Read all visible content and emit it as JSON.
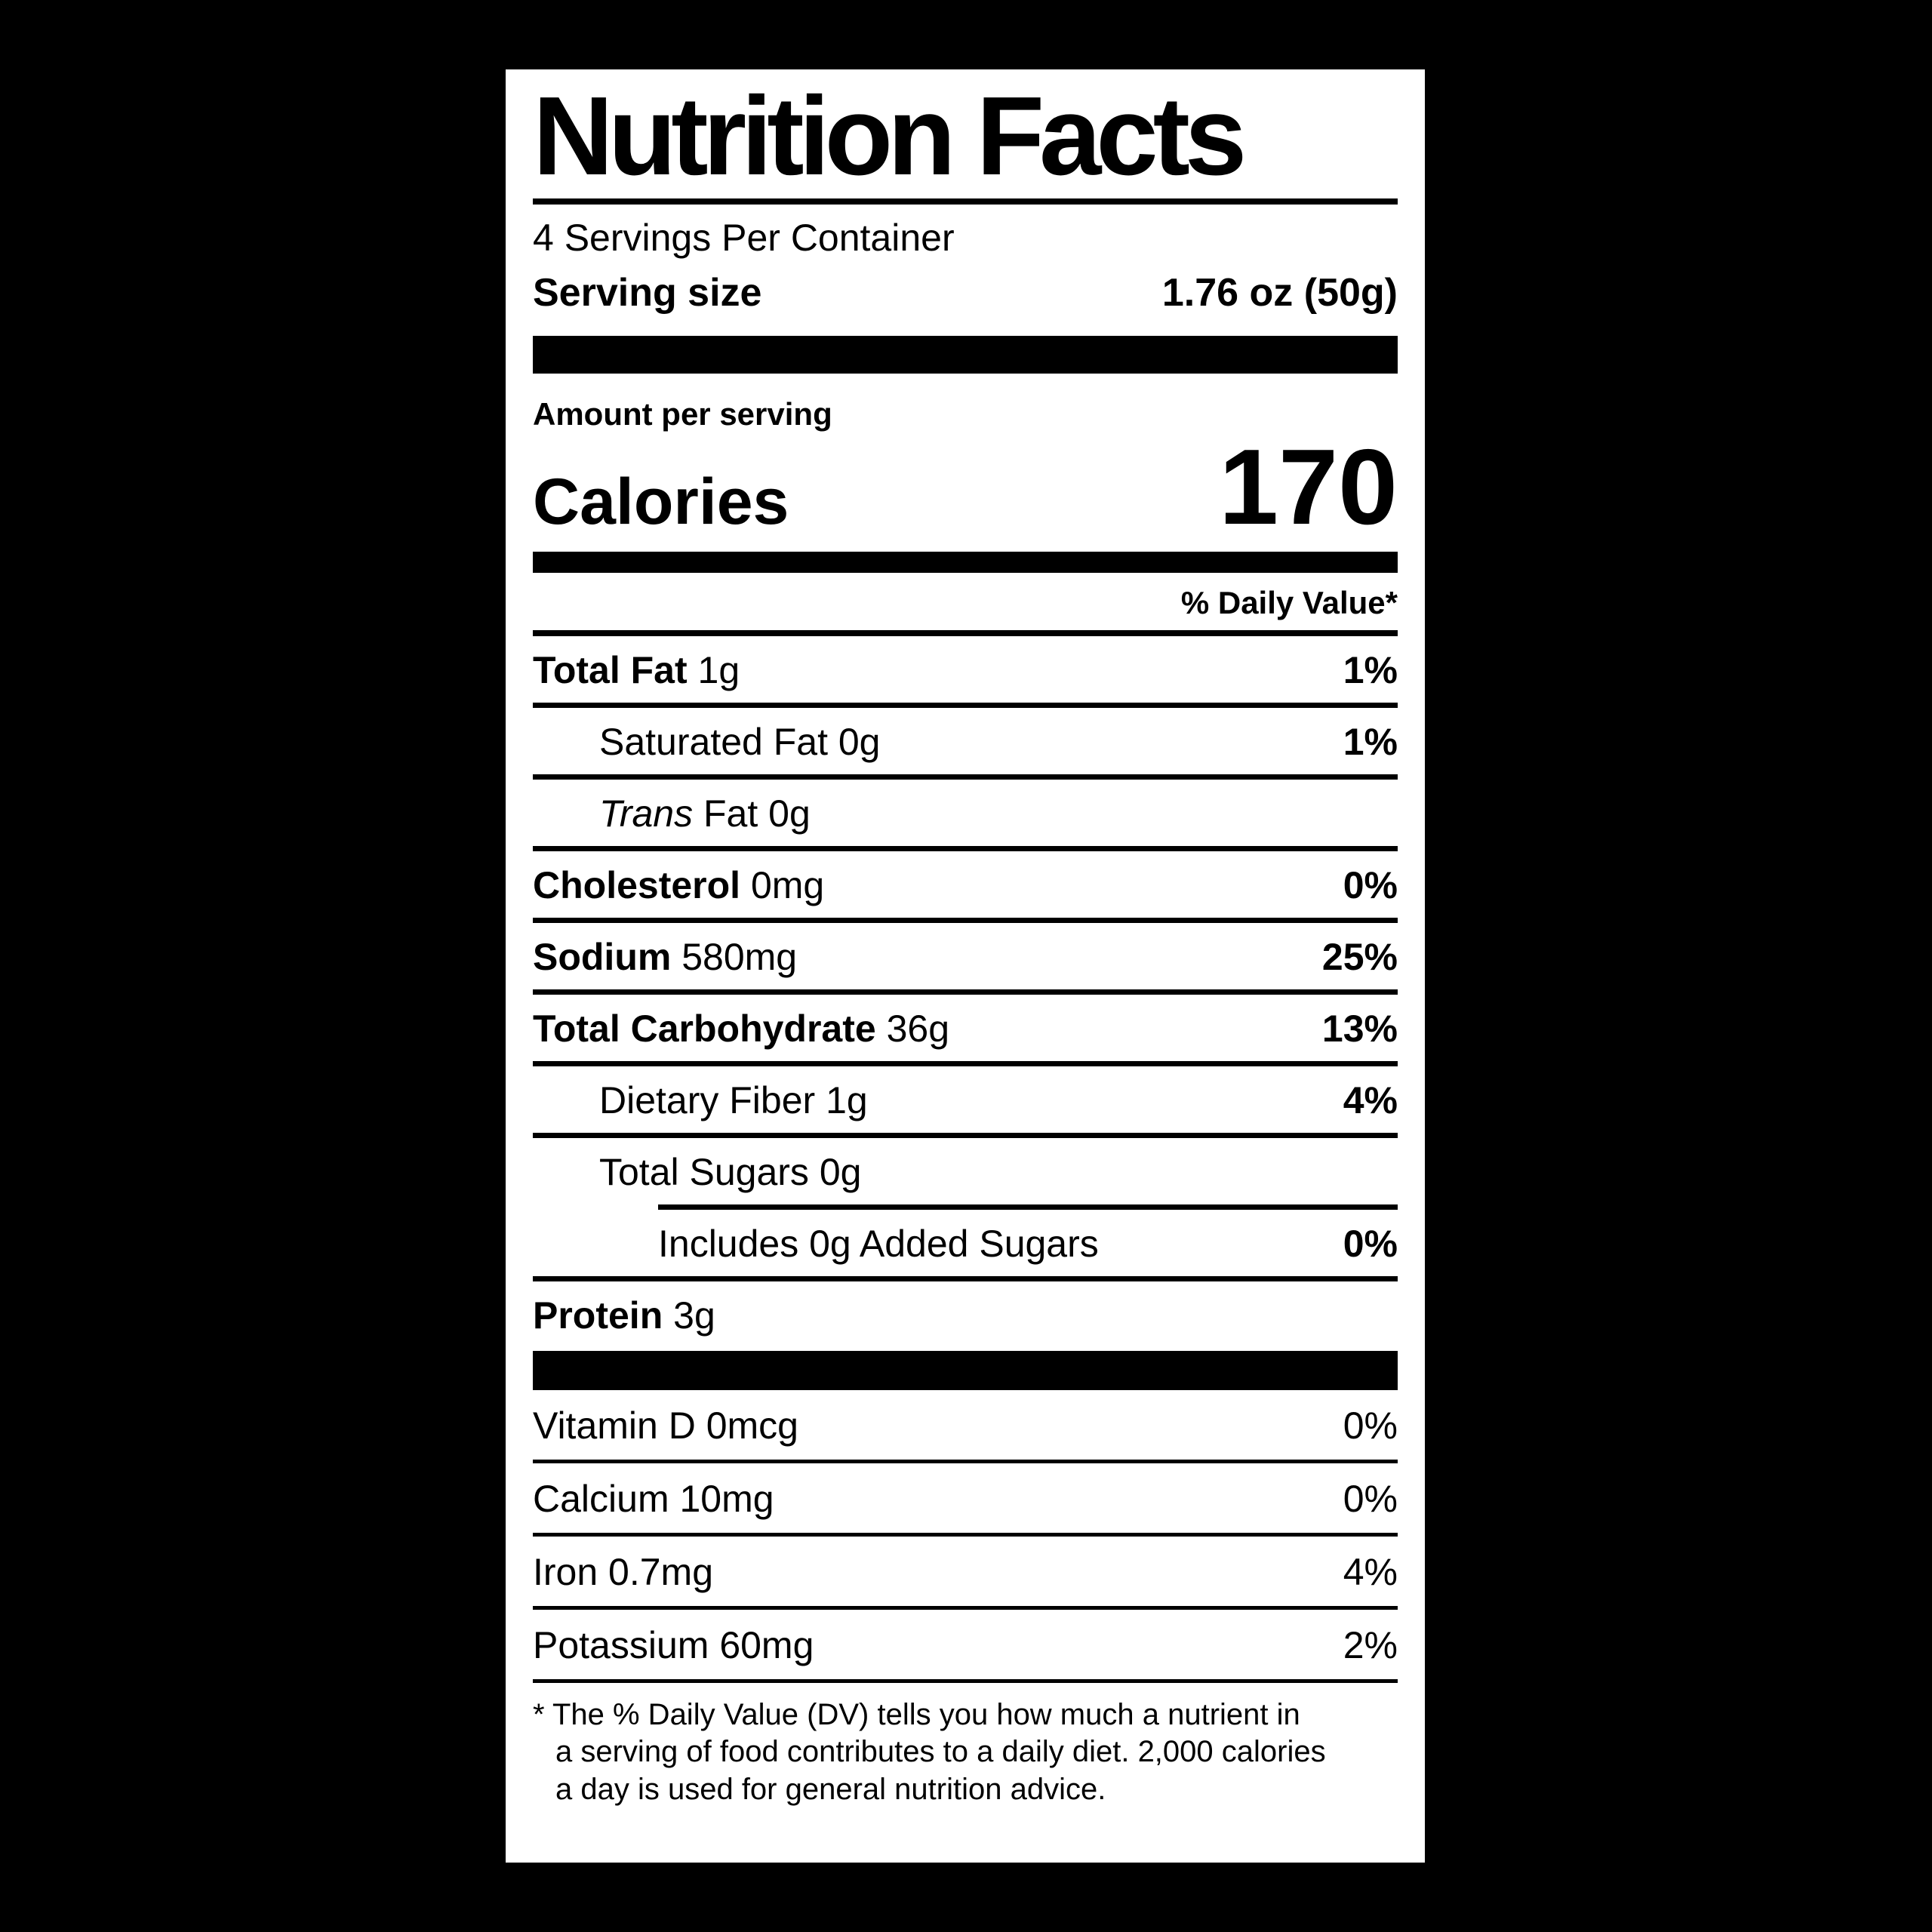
{
  "colors": {
    "background": "#000000",
    "label_bg": "#ffffff",
    "ink": "#000000"
  },
  "label": {
    "title": "Nutrition Facts",
    "servings_per_container": "4 Servings Per Container",
    "serving_size_label": "Serving size",
    "serving_size_value": "1.76 oz (50g)",
    "amount_per_serving": "Amount per serving",
    "calories_label": "Calories",
    "calories_value": "170",
    "daily_value_header": "% Daily Value*",
    "rows": [
      {
        "bold": "Total Fat",
        "reg": "1g",
        "dv": "1%"
      },
      {
        "reg": "Saturated Fat 0g",
        "dv": "1%"
      },
      {
        "italic": "Trans",
        "reg": "Fat 0g",
        "dv": ""
      },
      {
        "bold": "Cholesterol",
        "reg": "0mg",
        "dv": "0%"
      },
      {
        "bold": "Sodium",
        "reg": "580mg",
        "dv": "25%"
      },
      {
        "bold": "Total Carbohydrate",
        "reg": "36g",
        "dv": "13%"
      },
      {
        "reg": "Dietary Fiber 1g",
        "dv": "4%"
      },
      {
        "reg": "Total Sugars 0g",
        "dv": ""
      },
      {
        "reg": "Includes 0g Added Sugars",
        "dv": "0%"
      },
      {
        "bold": "Protein",
        "reg": "3g",
        "dv": ""
      }
    ],
    "vitamins": [
      {
        "name": "Vitamin D 0mcg",
        "dv": "0%"
      },
      {
        "name": "Calcium 10mg",
        "dv": "0%"
      },
      {
        "name": "Iron 0.7mg",
        "dv": "4%"
      },
      {
        "name": "Potassium 60mg",
        "dv": "2%"
      }
    ],
    "footnote_lines": [
      "* The % Daily Value (DV) tells you how much a nutrient in",
      "a serving of food contributes to a daily diet. 2,000 calories",
      "a day is used for general nutrition advice."
    ]
  }
}
